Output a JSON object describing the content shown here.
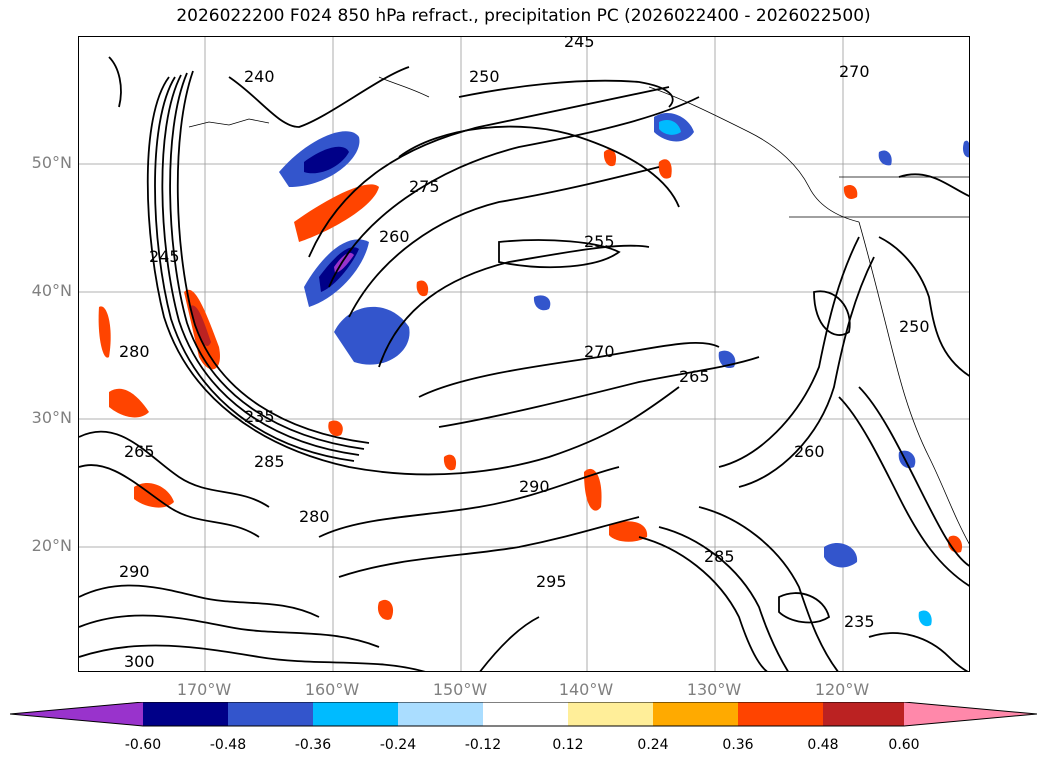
{
  "title": "2026022200 F024 850 hPa refract., precipitation PC (2026022400 - 2026022500)",
  "map": {
    "lat_labels": [
      "50°N",
      "40°N",
      "30°N",
      "20°N"
    ],
    "lon_labels": [
      "170°W",
      "160°W",
      "150°W",
      "140°W",
      "130°W",
      "120°W"
    ],
    "contour_labels": [
      "240",
      "245",
      "250",
      "270",
      "255",
      "260",
      "275",
      "245",
      "280",
      "235",
      "265",
      "285",
      "290",
      "270",
      "280",
      "295",
      "300",
      "235",
      "250",
      "260",
      "265",
      "285",
      "290"
    ]
  },
  "colorbar": {
    "tick_labels": [
      "-0.60",
      "-0.48",
      "-0.36",
      "-0.24",
      "-0.12",
      "0.12",
      "0.24",
      "0.36",
      "0.48",
      "0.60"
    ],
    "colors": [
      "#9933cc",
      "#000088",
      "#3355cc",
      "#00bbff",
      "#aaddff",
      "#ffffff",
      "#ffee99",
      "#ffaa00",
      "#ff4400",
      "#bb2222",
      "#ff88aa"
    ]
  }
}
